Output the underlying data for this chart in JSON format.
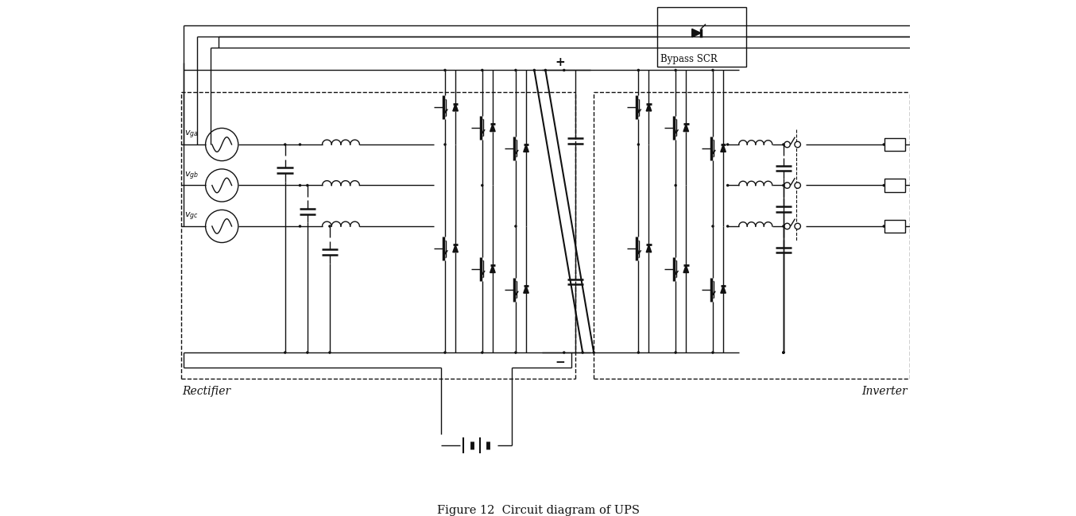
{
  "bg_color": "#ffffff",
  "line_color": "#111111",
  "title": "Figure 12  Circuit diagram of UPS",
  "rectifier_label": "Rectifier",
  "inverter_label": "Inverter",
  "bypass_label": "Bypass SCR",
  "figsize": [
    13.54,
    6.5
  ],
  "dpi": 100
}
